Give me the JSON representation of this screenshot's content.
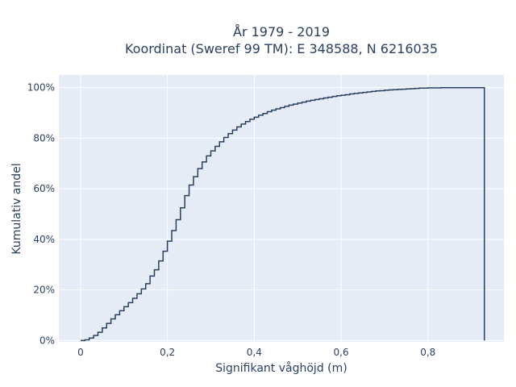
{
  "chart_data": {
    "type": "line",
    "subtype": "empirical-cdf-step",
    "title_line1": "År 1979 - 2019",
    "title_line2": "Koordinat (Sweref 99 TM): E 348588, N 6216035",
    "xlabel": "Signifikant våghöjd (m)",
    "ylabel": "Kumulativ andel",
    "xlim": [
      -0.05,
      0.975
    ],
    "ylim": [
      -0.005,
      1.05
    ],
    "x_ticks": [
      0,
      0.2,
      0.4,
      0.6,
      0.8
    ],
    "x_tick_labels": [
      "0",
      "0,2",
      "0,4",
      "0,6",
      "0,8"
    ],
    "y_ticks": [
      0,
      0.2,
      0.4,
      0.6,
      0.8,
      1.0
    ],
    "y_tick_labels": [
      "0%",
      "20%",
      "40%",
      "60%",
      "80%",
      "100%"
    ],
    "grid": true,
    "line_color": "#2a3f5f",
    "plot_background": "#e5ecf6",
    "step_width": 0.01,
    "x_max": 0.93,
    "series": [
      {
        "x": [
          0.0,
          0.01,
          0.02,
          0.03,
          0.04,
          0.05,
          0.06,
          0.07,
          0.08,
          0.09,
          0.1,
          0.11,
          0.12,
          0.13,
          0.14,
          0.15,
          0.16,
          0.17,
          0.18,
          0.19,
          0.2,
          0.21,
          0.22,
          0.23,
          0.24,
          0.25,
          0.26,
          0.27,
          0.28,
          0.29,
          0.3,
          0.31,
          0.32,
          0.33,
          0.34,
          0.35,
          0.36,
          0.37,
          0.38,
          0.39,
          0.4,
          0.41,
          0.42,
          0.43,
          0.44,
          0.45,
          0.46,
          0.47,
          0.48,
          0.49,
          0.5,
          0.51,
          0.52,
          0.53,
          0.54,
          0.55,
          0.56,
          0.57,
          0.58,
          0.59,
          0.6,
          0.61,
          0.62,
          0.63,
          0.64,
          0.65,
          0.66,
          0.67,
          0.68,
          0.69,
          0.7,
          0.71,
          0.72,
          0.73,
          0.74,
          0.75,
          0.76,
          0.77,
          0.78,
          0.79,
          0.8,
          0.81,
          0.82,
          0.83,
          0.84,
          0.85,
          0.86,
          0.87,
          0.88,
          0.89,
          0.9,
          0.91,
          0.92
        ],
        "y": [
          0.0,
          0.003,
          0.01,
          0.02,
          0.033,
          0.05,
          0.068,
          0.086,
          0.102,
          0.118,
          0.134,
          0.15,
          0.167,
          0.185,
          0.204,
          0.225,
          0.255,
          0.28,
          0.315,
          0.353,
          0.393,
          0.435,
          0.478,
          0.525,
          0.573,
          0.615,
          0.648,
          0.68,
          0.706,
          0.73,
          0.75,
          0.768,
          0.786,
          0.803,
          0.818,
          0.832,
          0.845,
          0.856,
          0.866,
          0.875,
          0.883,
          0.891,
          0.898,
          0.905,
          0.911,
          0.916,
          0.921,
          0.926,
          0.931,
          0.935,
          0.939,
          0.943,
          0.947,
          0.95,
          0.953,
          0.956,
          0.959,
          0.962,
          0.965,
          0.968,
          0.97,
          0.972,
          0.975,
          0.977,
          0.979,
          0.981,
          0.983,
          0.985,
          0.987,
          0.988,
          0.99,
          0.991,
          0.992,
          0.993,
          0.994,
          0.995,
          0.996,
          0.997,
          0.998,
          0.998,
          0.999,
          0.999,
          0.999,
          1.0,
          1.0,
          1.0,
          1.0,
          1.0,
          1.0,
          1.0,
          1.0,
          1.0,
          1.0
        ]
      }
    ]
  }
}
